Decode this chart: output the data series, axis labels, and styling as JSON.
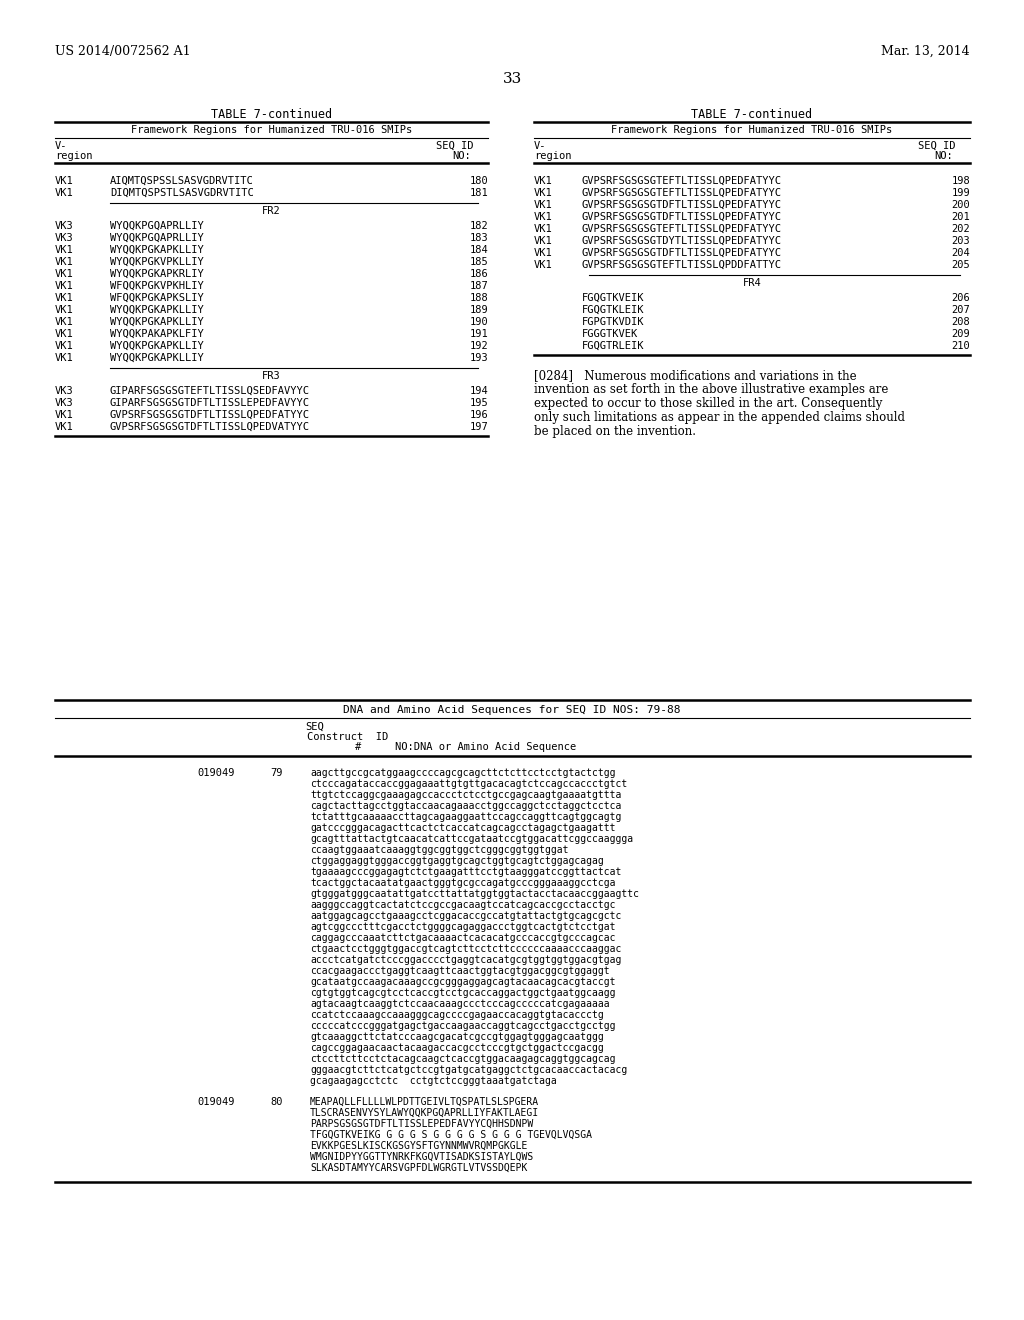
{
  "bg_color": "#ffffff",
  "header_left": "US 2014/0072562 A1",
  "header_right": "Mar. 13, 2014",
  "page_number": "33",
  "left_table_title": "TABLE 7-continued",
  "right_table_title": "TABLE 7-continued",
  "left_col_header": "Framework Regions for Humanized TRU-016 SMIPs",
  "right_col_header": "Framework Regions for Humanized TRU-016 SMIPs",
  "left_rows": [
    [
      "VK1",
      "AIQMTQSPSSLSASVGDRVTITC",
      "180"
    ],
    [
      "VK1",
      "DIQMTQSPSTLSASVGDRVTITC",
      "181"
    ],
    [
      "__FR2__",
      "",
      ""
    ],
    [
      "VK3",
      "WYQQKPGQAPRLLIY",
      "182"
    ],
    [
      "VK3",
      "WYQQKPGQAPRLLIY",
      "183"
    ],
    [
      "VK1",
      "WYQQKPGKAPKLLIY",
      "184"
    ],
    [
      "VK1",
      "WYQQKPGKVPKLLIY",
      "185"
    ],
    [
      "VK1",
      "WYQQKPGKAPKRLIY",
      "186"
    ],
    [
      "VK1",
      "WFQQKPGKVPKHLIY",
      "187"
    ],
    [
      "VK1",
      "WFQQKPGKAPKSLIY",
      "188"
    ],
    [
      "VK1",
      "WYQQKPGKAPKLLIY",
      "189"
    ],
    [
      "VK1",
      "WYQQKPGKAPKLLIY",
      "190"
    ],
    [
      "VK1",
      "WYQQKPAKAPKLFIY",
      "191"
    ],
    [
      "VK1",
      "WYQQKPGKAPKLLIY",
      "192"
    ],
    [
      "VK1",
      "WYQQKPGKAPKLLIY",
      "193"
    ],
    [
      "__FR3__",
      "",
      ""
    ],
    [
      "VK3",
      "GIPARFSGSGSGTEFTLTISSLQSEDFAVYYC",
      "194"
    ],
    [
      "VK3",
      "GIPARFSGSGSGTDFTLTISSLEPEDFAVYYC",
      "195"
    ],
    [
      "VK1",
      "GVPSRFSGSGSGTDFTLTISSLQPEDFATYYC",
      "196"
    ],
    [
      "VK1",
      "GVPSRFSGSGSGTDFTLTISSLQPEDVATYYC",
      "197"
    ]
  ],
  "right_rows": [
    [
      "VK1",
      "GVPSRFSGSGSGTEFTLTISSLQPEDFATYYC",
      "198"
    ],
    [
      "VK1",
      "GVPSRFSGSGSGTEFTLTISSLQPEDFATYYC",
      "199"
    ],
    [
      "VK1",
      "GVPSRFSGSGSGTDFTLTISSLQPEDFATYYC",
      "200"
    ],
    [
      "VK1",
      "GVPSRFSGSGSGTDFTLTISSLQPEDFATYYC",
      "201"
    ],
    [
      "VK1",
      "GVPSRFSGSGSGTEFTLTISSLQPEDFATYYC",
      "202"
    ],
    [
      "VK1",
      "GVPSRFSGSGSGTDYTLTISSLQPEDFATYYC",
      "203"
    ],
    [
      "VK1",
      "GVPSRFSGSGSGTDFTLTISSLQPEDFATYYC",
      "204"
    ],
    [
      "VK1",
      "GVPSRFSGSGSGTEFTLTISSLQPDDFATTYC",
      "205"
    ],
    [
      "__FR4__",
      "",
      ""
    ],
    [
      "",
      "FGQGTKVEIK",
      "206"
    ],
    [
      "",
      "FGQGTKLEIK",
      "207"
    ],
    [
      "",
      "FGPGTKVDIK",
      "208"
    ],
    [
      "",
      "FGGGTKVEK",
      "209"
    ],
    [
      "",
      "FGQGTRLEIK",
      "210"
    ]
  ],
  "paragraph_lines": [
    "[0284]   Numerous modifications and variations in the",
    "invention as set forth in the above illustrative examples are",
    "expected to occur to those skilled in the art. Consequently",
    "only such limitations as appear in the appended claims should",
    "be placed on the invention."
  ],
  "dna_table_title": "DNA and Amino Acid Sequences for SEQ ID NOS: 79-88",
  "dna_seq1_construct": "019049",
  "dna_seq1_id": "79",
  "dna_seq1_lines": [
    "aagcttgccgcatggaagccccagcgcagcttctcttcctcctgtactctgg",
    "ctcccagataccaccggagaaattgtgttgacacagtctccagccaccctgtct",
    "ttgtctccaggcgaaagagccaccctctcctgccgagcaagtgaaaatgttta",
    "cagctacttagcctggtaccaacagaaacctggccaggctcctaggctcctca",
    "tctatttgcaaaaaccttagcagaaggaattccagccaggttcagtggcagtg",
    "gatcccgggacagacttcactctcaccatcagcagcctagagctgaagattt",
    "gcagtttattactgtcaacatcattccgataatccgtggacattcggccaaggga",
    "ccaagtggaaatcaaaggtggcggtggctcgggcggtggtggat",
    "ctggaggaggtgggaccggtgaggtgcagctggtgcagtctggagcagag",
    "tgaaaagcccggagagtctctgaagatttcctgtaagggatccggttactcat",
    "tcactggctacaatatgaactgggtgcgccagatgcccgggaaaggcctcga",
    "gtgggatgggcaatattgatccttattatggtggtactacctacaaccggaagttc",
    "aagggccaggtcactatctccgccgacaagtccatcagcaccgcctacctgc",
    "aatggagcagcctgaaagcctcggacaccgccatgtattactgtgcagcgctc",
    "agtcggccctttcgacctctggggcagaggaccctggtcactgtctcctgat",
    "caggagcccaaatcttctgacaaaactcacacatgcccaccgtgcccagcac",
    "ctgaactcctgggtggaccgtcagtcttcctcttccccccaaaacccaaggac",
    "accctcatgatctcccggacccctgaggtcacatgcgtggtggtggacgtgag",
    "ccacgaagaccctgaggtcaagttcaactggtacgtggacggcgtggaggt",
    "gcataatgccaagacaaagccgcgggaggagcagtacaacagcacgtaccgt",
    "cgtgtggtcagcgtcctcaccgtcctgcaccaggactggctgaatggcaagg",
    "agtacaagtcaaggtctccaacaaagccctcccagcccccatcgagaaaaa",
    "ccatctccaaagccaaagggcagccccgagaaccacaggtgtacaccctg",
    "cccccatcccgggatgagctgaccaagaaccaggtcagcctgacctgcctgg",
    "gtcaaaggcttctatcccaagcgacatcgccgtggagtgggagcaatggg",
    "cagccggagaacaactacaagaccacgcctcccgtgctggactccgacgg",
    "ctccttcttcctctacagcaagctcaccgtggacaagagcaggtggcagcag",
    "gggaacgtcttctcatgctccgtgatgcatgaggctctgcacaaccactacacg",
    "gcagaagagcctctc  cctgtctccgggtaaatgatctaga"
  ],
  "dna_seq2_construct": "019049",
  "dna_seq2_id": "80",
  "dna_seq2_lines": [
    "MEAPAQLLFLLLLWLPDTTGEIVLTQSPATLSLSPGERA",
    "TLSCRASENVYSYLAWYQQKPGQAPRLLIYFAKTLAEGI",
    "PARPSGSGSGTDFTLTISSLEPEDFAVYYCQHHSDNPW",
    "TFGQGTKVEIKG G G G S G G G G S G G G TGEVQLVQSGA",
    "EVKKPGESLKISCKGSGYSFTGYNNMWVRQMPGKGLE",
    "WMGNIDPYYGGTTYNRKFKGQVTISADKSISTAYLQWS",
    "SLKASDTAMYYCARSVGPFDLWGRGTLVTVSSDQEPK"
  ]
}
